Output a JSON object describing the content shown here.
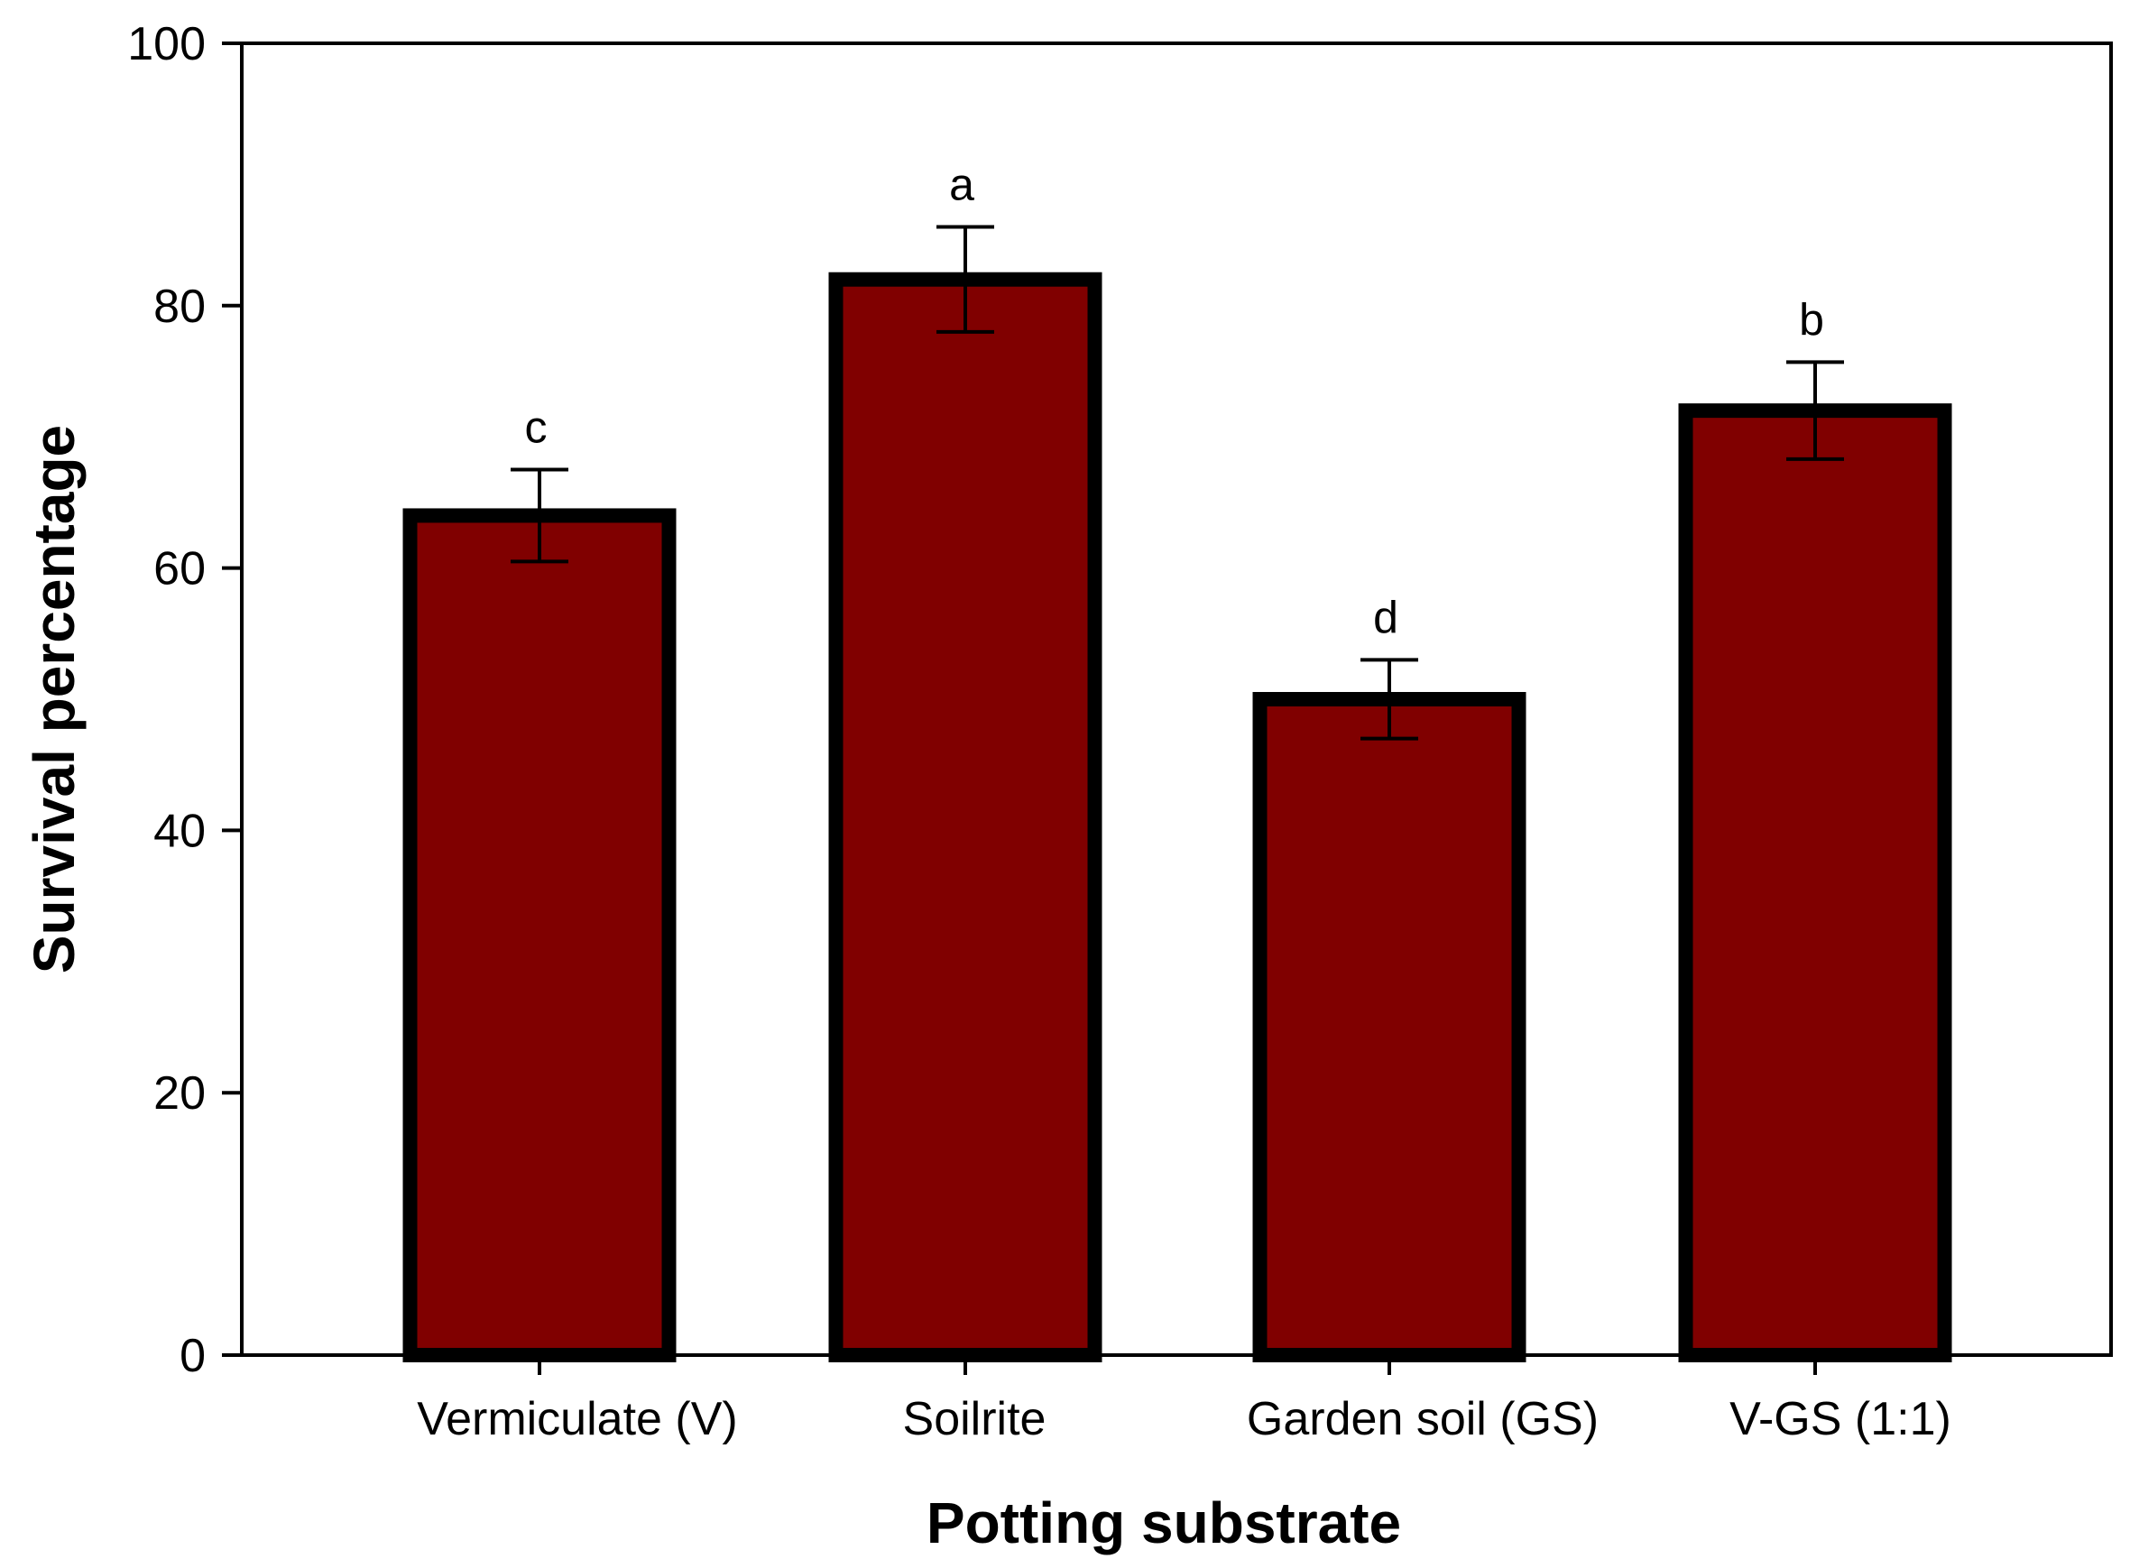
{
  "chart_data": {
    "type": "bar",
    "title": "",
    "xlabel": "Potting substrate",
    "ylabel": "Survival percentage",
    "ylim": [
      0,
      100
    ],
    "yticks": [
      0,
      20,
      40,
      60,
      80,
      100
    ],
    "categories": [
      "Vermiculate (V)",
      "Soilrite",
      "Garden soil (GS)",
      "V-GS (1:1)"
    ],
    "values": [
      64,
      82,
      50,
      72
    ],
    "errors": [
      3.5,
      4,
      3,
      3.7
    ],
    "significance_letters": [
      "c",
      "a",
      "d",
      "b"
    ],
    "grid": false,
    "colors": {
      "bar_fill": "#800000",
      "bar_edge": "#000000",
      "axis": "#000000"
    }
  }
}
